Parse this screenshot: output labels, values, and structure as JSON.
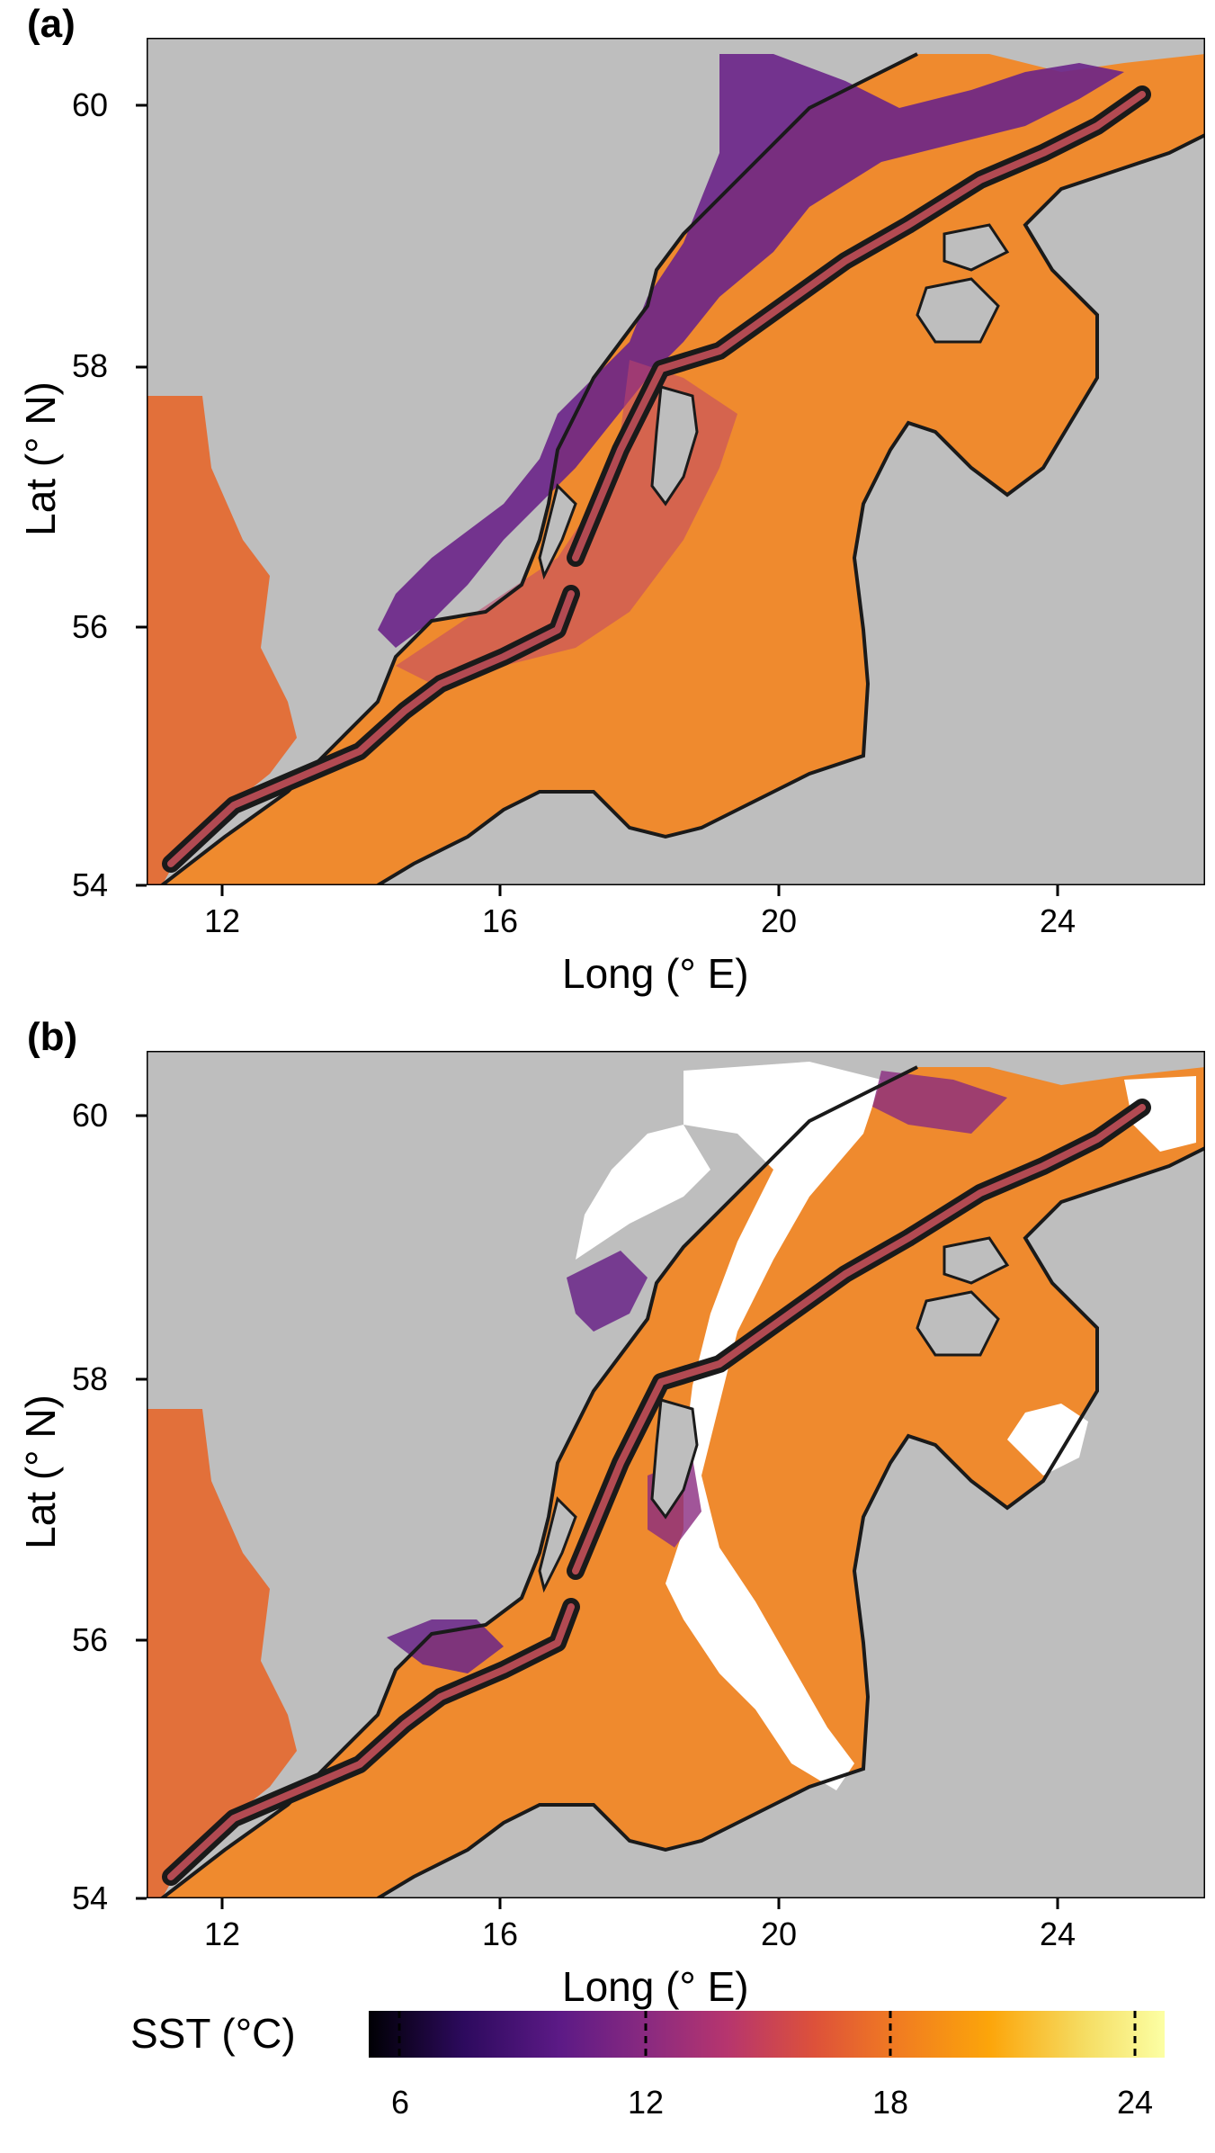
{
  "panels": [
    {
      "label": "(a)",
      "x_title": "Long (° E)",
      "y_title": "Lat (° N)",
      "x_ticks": [
        "12",
        "16",
        "20",
        "24"
      ],
      "y_ticks": [
        "60",
        "58",
        "56",
        "54"
      ]
    },
    {
      "label": "(b)",
      "x_title": "Long (° E)",
      "y_title": "Lat (° N)",
      "x_ticks": [
        "12",
        "16",
        "20",
        "24"
      ],
      "y_ticks": [
        "60",
        "58",
        "56",
        "54"
      ]
    }
  ],
  "colorbar": {
    "title": "SST (°C)",
    "ticks": [
      "6",
      "12",
      "18",
      "24"
    ],
    "stops": [
      "#000004",
      "#2d0a5e",
      "#5c1a86",
      "#8a2a80",
      "#b6356e",
      "#dd513a",
      "#f07a22",
      "#fca50a",
      "#f5dd63",
      "#fcffa4"
    ]
  },
  "colors": {
    "land": "#bebebe",
    "sea_warm": "#f08a2a",
    "sea_cool": "#5a1f8a",
    "coast": "#1a1a1a",
    "track": "#1a1a1a",
    "missing": "#ffffff"
  }
}
